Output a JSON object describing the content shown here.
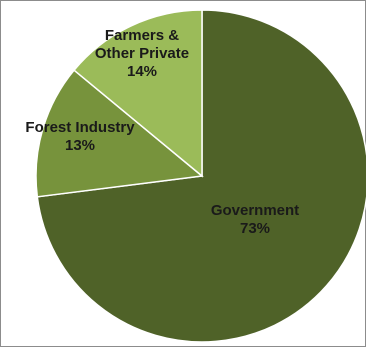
{
  "chart_data": {
    "type": "pie",
    "slices": [
      {
        "label": "Government",
        "value": 73,
        "percent_label": "73%",
        "color": "#4f6228"
      },
      {
        "label": "Forest Industry",
        "value": 13,
        "percent_label": "13%",
        "color": "#77933c"
      },
      {
        "label": "Farmers & Other Private",
        "label_lines": [
          "Farmers &",
          "Other Private"
        ],
        "value": 14,
        "percent_label": "14%",
        "color": "#9bbb59"
      }
    ],
    "start_angle_deg": 0,
    "direction": "clockwise",
    "edge_color": "#ffffff"
  }
}
